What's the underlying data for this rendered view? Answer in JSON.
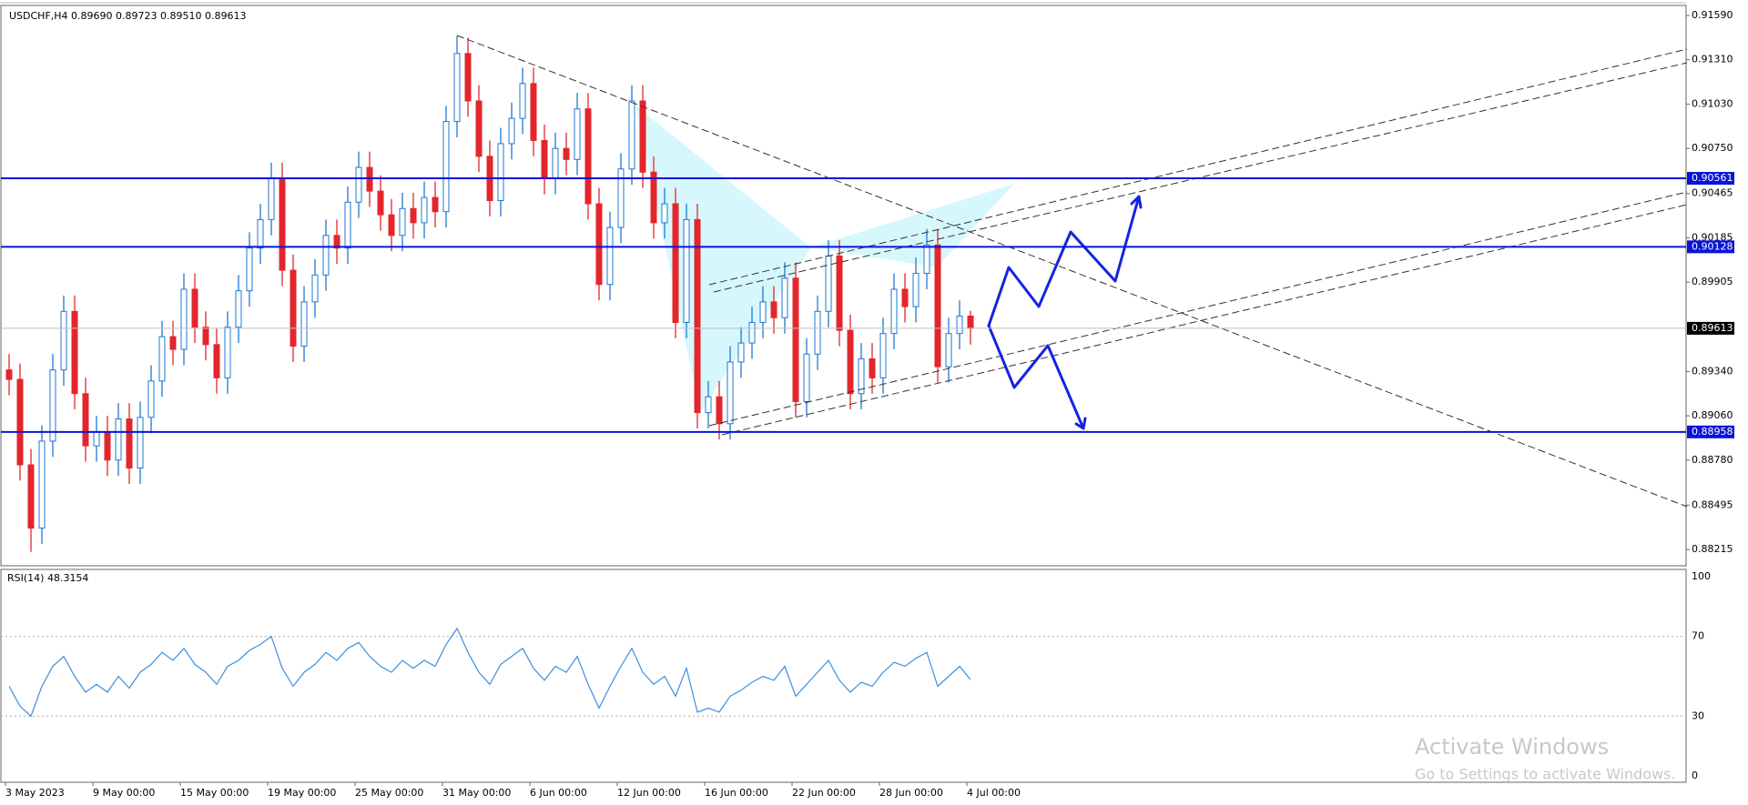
{
  "chart_data": {
    "type": "candlestick",
    "header": "USDCHF,H4  0.89690 0.89723 0.89510 0.89613",
    "categories": [
      "3 May 2023",
      null,
      null,
      null,
      null,
      null,
      null,
      null,
      "9 May 00:00",
      null,
      null,
      null,
      null,
      null,
      null,
      null,
      "15 May 00:00",
      null,
      null,
      null,
      null,
      null,
      null,
      null,
      "19 May 00:00",
      null,
      null,
      null,
      null,
      null,
      null,
      null,
      "25 May 00:00",
      null,
      null,
      null,
      null,
      null,
      null,
      null,
      "31 May 00:00",
      null,
      null,
      null,
      null,
      null,
      null,
      null,
      "6 Jun 00:00",
      null,
      null,
      null,
      null,
      null,
      null,
      null,
      "12 Jun 00:00",
      null,
      null,
      null,
      null,
      null,
      null,
      null,
      "16 Jun 00:00",
      null,
      null,
      null,
      null,
      null,
      null,
      null,
      "22 Jun 00:00",
      null,
      null,
      null,
      null,
      null,
      null,
      null,
      "28 Jun 00:00",
      null,
      null,
      null,
      null,
      null,
      null,
      null,
      "4 Jul 00:00"
    ],
    "open": [
      0.8935,
      0.8929,
      0.8875,
      0.8835,
      0.889,
      0.8935,
      0.8972,
      0.892,
      0.8887,
      0.8896,
      0.8878,
      0.8904,
      0.8873,
      0.8905,
      0.8928,
      0.8956,
      0.8948,
      0.8986,
      0.8962,
      0.8951,
      0.893,
      0.8962,
      0.8985,
      0.9012,
      0.903,
      0.9056,
      0.8998,
      0.895,
      0.8978,
      0.8995,
      0.902,
      0.9012,
      0.9041,
      0.9063,
      0.9048,
      0.9033,
      0.902,
      0.9037,
      0.9028,
      0.9044,
      0.9035,
      0.9092,
      0.9135,
      0.9105,
      0.907,
      0.9042,
      0.9078,
      0.9094,
      0.9116,
      0.908,
      0.9056,
      0.9075,
      0.9068,
      0.91,
      0.904,
      0.8989,
      0.9025,
      0.9062,
      0.9105,
      0.906,
      0.9028,
      0.904,
      0.8965,
      0.903,
      0.8908,
      0.8918,
      0.8901,
      0.894,
      0.8952,
      0.8965,
      0.8978,
      0.8968,
      0.8993,
      0.8915,
      0.8945,
      0.8972,
      0.9007,
      0.896,
      0.892,
      0.8942,
      0.893,
      0.8958,
      0.8986,
      0.8975,
      0.8996,
      0.9014,
      0.8937,
      0.8958,
      0.8969
    ],
    "high": [
      0.8945,
      0.8939,
      0.8885,
      0.89,
      0.8945,
      0.8982,
      0.8982,
      0.893,
      0.8906,
      0.8906,
      0.8914,
      0.8914,
      0.8915,
      0.8938,
      0.8966,
      0.8966,
      0.8996,
      0.8996,
      0.8972,
      0.8961,
      0.8972,
      0.8995,
      0.9022,
      0.904,
      0.9066,
      0.9066,
      0.9008,
      0.8988,
      0.9005,
      0.903,
      0.903,
      0.9051,
      0.9073,
      0.9073,
      0.9058,
      0.9043,
      0.9047,
      0.9047,
      0.9054,
      0.9054,
      0.9102,
      0.9146,
      0.9145,
      0.9115,
      0.908,
      0.9088,
      0.9104,
      0.9126,
      0.9126,
      0.909,
      0.9085,
      0.9085,
      0.911,
      0.911,
      0.905,
      0.9035,
      0.9072,
      0.9115,
      0.9115,
      0.907,
      0.905,
      0.905,
      0.904,
      0.904,
      0.8928,
      0.8928,
      0.895,
      0.8962,
      0.8975,
      0.8988,
      0.8988,
      0.9003,
      0.9003,
      0.8955,
      0.8982,
      0.9017,
      0.9017,
      0.897,
      0.8952,
      0.8952,
      0.8968,
      0.8996,
      0.8996,
      0.9006,
      0.9024,
      0.9024,
      0.8968,
      0.8979,
      0.89723
    ],
    "low": [
      0.8919,
      0.8865,
      0.882,
      0.8825,
      0.888,
      0.8925,
      0.891,
      0.8877,
      0.8877,
      0.8868,
      0.8868,
      0.8863,
      0.8863,
      0.8895,
      0.8918,
      0.8938,
      0.8938,
      0.8952,
      0.8941,
      0.892,
      0.892,
      0.8952,
      0.8975,
      0.9002,
      0.902,
      0.8988,
      0.894,
      0.894,
      0.8968,
      0.8985,
      0.9002,
      0.9002,
      0.9031,
      0.9038,
      0.9023,
      0.901,
      0.901,
      0.9018,
      0.9018,
      0.9025,
      0.9025,
      0.9082,
      0.9095,
      0.906,
      0.9032,
      0.9032,
      0.9068,
      0.9084,
      0.907,
      0.9046,
      0.9046,
      0.9058,
      0.9058,
      0.903,
      0.8979,
      0.8979,
      0.9015,
      0.9052,
      0.905,
      0.9018,
      0.9018,
      0.8955,
      0.8955,
      0.8898,
      0.8898,
      0.8891,
      0.8891,
      0.893,
      0.8942,
      0.8955,
      0.8958,
      0.8958,
      0.8905,
      0.8905,
      0.8935,
      0.8962,
      0.895,
      0.891,
      0.891,
      0.892,
      0.892,
      0.8948,
      0.8965,
      0.8965,
      0.8986,
      0.8927,
      0.8927,
      0.8948,
      0.8951
    ],
    "close": [
      0.8929,
      0.8875,
      0.8835,
      0.889,
      0.8935,
      0.8972,
      0.892,
      0.8887,
      0.8896,
      0.8878,
      0.8904,
      0.8873,
      0.8905,
      0.8928,
      0.8956,
      0.8948,
      0.8986,
      0.8962,
      0.8951,
      0.893,
      0.8962,
      0.8985,
      0.9012,
      0.903,
      0.9056,
      0.8998,
      0.895,
      0.8978,
      0.8995,
      0.902,
      0.9012,
      0.9041,
      0.9063,
      0.9048,
      0.9033,
      0.902,
      0.9037,
      0.9028,
      0.9044,
      0.9035,
      0.9092,
      0.9135,
      0.9105,
      0.907,
      0.9042,
      0.9078,
      0.9094,
      0.9116,
      0.908,
      0.9056,
      0.9075,
      0.9068,
      0.91,
      0.904,
      0.8989,
      0.9025,
      0.9062,
      0.9105,
      0.906,
      0.9028,
      0.904,
      0.8965,
      0.903,
      0.8908,
      0.8918,
      0.8901,
      0.894,
      0.8952,
      0.8965,
      0.8978,
      0.8968,
      0.8993,
      0.8915,
      0.8945,
      0.8972,
      0.9007,
      0.896,
      0.892,
      0.8942,
      0.893,
      0.8958,
      0.8986,
      0.8975,
      0.8996,
      0.9014,
      0.8937,
      0.8958,
      0.8969,
      0.89613
    ],
    "colors": {
      "up": "#1f77d4",
      "down": "#e3262b"
    },
    "ylim": [
      0.88112,
      0.91688
    ],
    "yticks": [
      {
        "value": 0.9159,
        "label": "0.91590"
      },
      {
        "value": 0.9131,
        "label": "0.91310"
      },
      {
        "value": 0.9103,
        "label": "0.91030"
      },
      {
        "value": 0.9075,
        "label": "0.90750"
      },
      0.90465,
      0.90185,
      0.89905,
      {
        "value": 0.8934,
        "label": "0.89340"
      },
      {
        "value": 0.8906,
        "label": "0.89060"
      },
      {
        "value": 0.8878,
        "label": "0.88780"
      },
      0.88495,
      0.88215
    ],
    "hlines": [
      0.90561,
      0.90128,
      0.88958
    ],
    "hline_color": "#0a14d8",
    "rsi": {
      "title": "RSI(14) 48.3154",
      "color": "#3d8fdc",
      "values": [
        45,
        35,
        30,
        45,
        55,
        60,
        50,
        42,
        46,
        42,
        50,
        44,
        52,
        56,
        62,
        58,
        64,
        56,
        52,
        46,
        55,
        58,
        63,
        66,
        70,
        54,
        45,
        52,
        56,
        62,
        58,
        64,
        67,
        60,
        55,
        52,
        58,
        54,
        58,
        55,
        66,
        74,
        62,
        52,
        46,
        56,
        60,
        64,
        54,
        48,
        55,
        52,
        60,
        46,
        34,
        45,
        55,
        64,
        52,
        46,
        50,
        40,
        54,
        32,
        34,
        32,
        40,
        43,
        47,
        50,
        48,
        55,
        40,
        46,
        52,
        58,
        48,
        42,
        47,
        45,
        52,
        57,
        55,
        59,
        62,
        45,
        50,
        55,
        48.3154
      ],
      "ylim": [
        0,
        100
      ],
      "yticks": [
        100,
        70,
        30,
        0
      ],
      "levels": [
        70,
        30
      ]
    },
    "watermark": {
      "title": "Activate Windows",
      "subtitle": "Go to Settings to activate Windows."
    }
  }
}
